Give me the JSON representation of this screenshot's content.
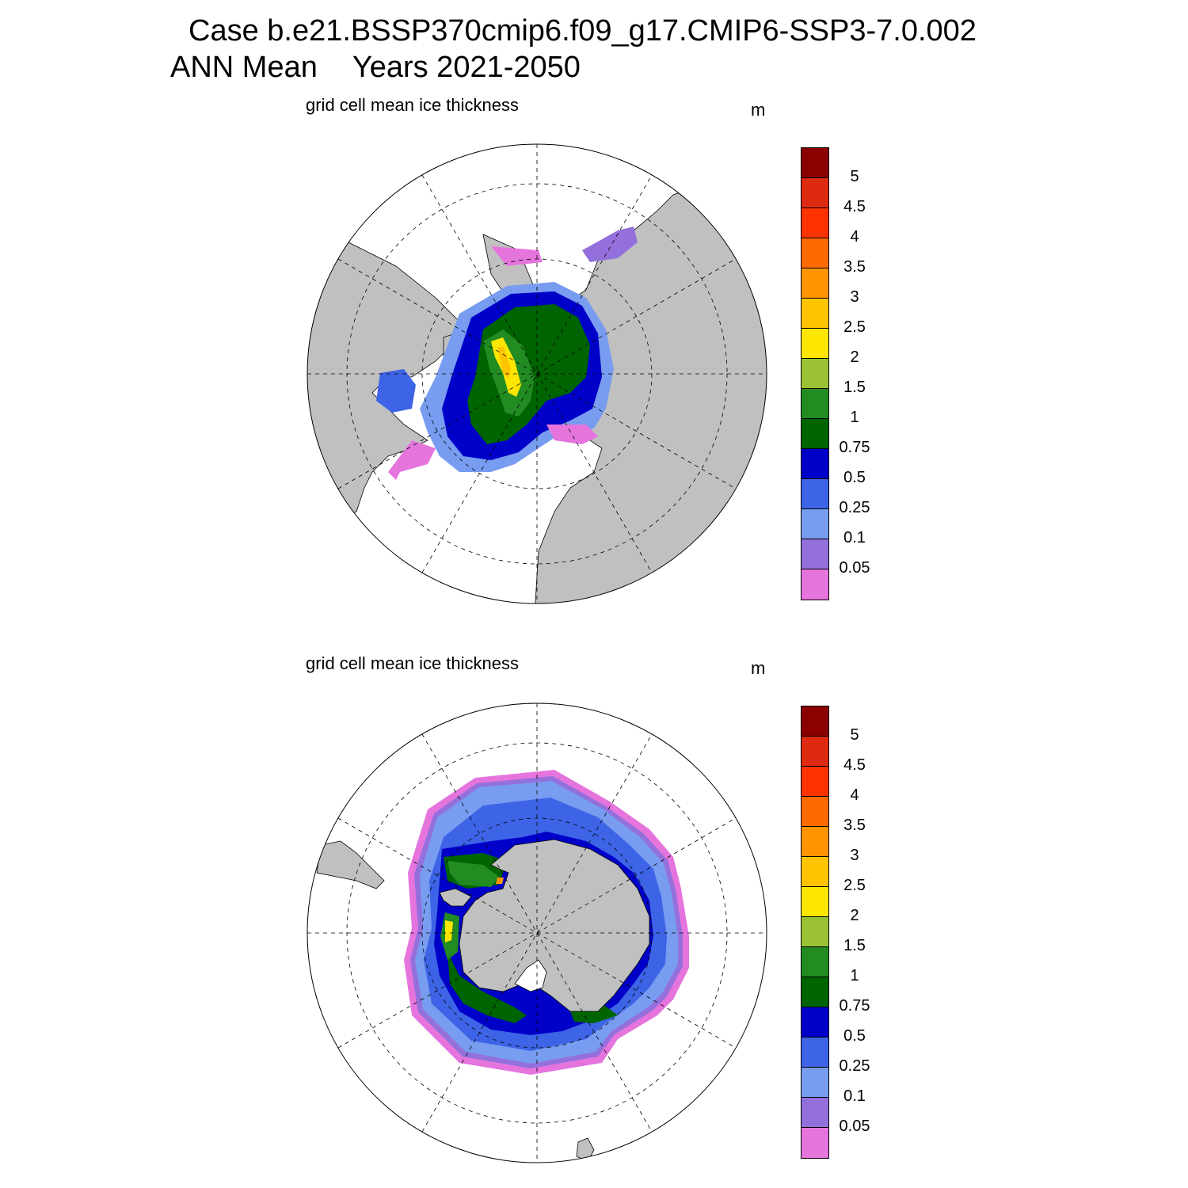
{
  "title": {
    "line1": "Case b.e21.BSSP370cmip6.f09_g17.CMIP6-SSP3-7.0.002",
    "line2_left": "ANN Mean",
    "line2_right": "Years 2021-2050"
  },
  "colors": {
    "land": "#c0c0c0",
    "ocean": "#ffffff",
    "levels": [
      "#e574dd",
      "#9370db",
      "#789cf0",
      "#3d64e6",
      "#0000c8",
      "#006400",
      "#228b22",
      "#9ac234",
      "#ffe600",
      "#ffc300",
      "#ff9400",
      "#ff6a00",
      "#ff3300",
      "#dd2a10",
      "#8b0000"
    ]
  },
  "panels": [
    {
      "id": "north",
      "label": "grid cell mean ice thickness",
      "units": "m",
      "hemisphere": "Northern Hemisphere"
    },
    {
      "id": "south",
      "label": "grid cell mean ice thickness",
      "units": "m",
      "hemisphere": "Southern Hemisphere"
    }
  ],
  "colorbar": {
    "labels": [
      "5",
      "4.5",
      "4",
      "3.5",
      "3",
      "2.5",
      "2",
      "1.5",
      "1",
      "0.75",
      "0.5",
      "0.25",
      "0.1",
      "0.05"
    ]
  }
}
